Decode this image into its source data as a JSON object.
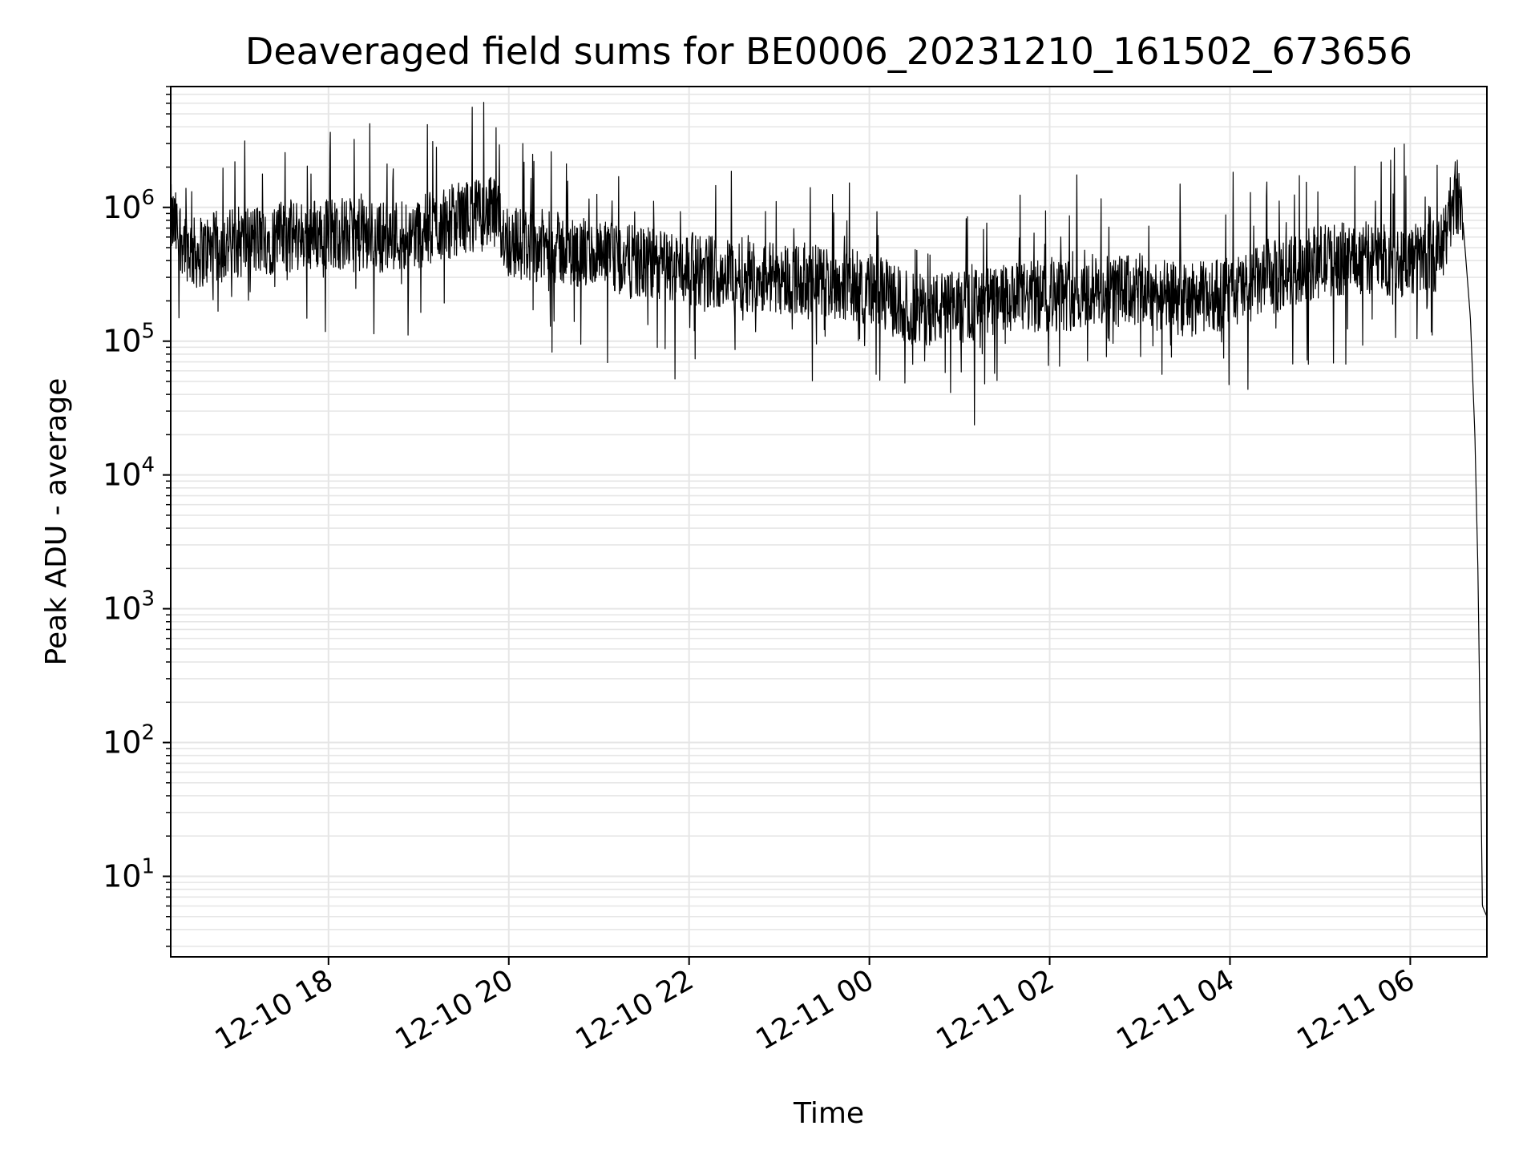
{
  "chart_data": {
    "type": "line",
    "title": "Deaveraged field sums for BE0006_20231210_161502_673656",
    "xlabel": "Time",
    "ylabel": "Peak ADU - average",
    "x_range": [
      "2023-12-10 16:15",
      "2023-12-11 06:51"
    ],
    "y_range": [
      2.5,
      8000000
    ],
    "y_scale": "log",
    "grid": true,
    "line_color": "#000000",
    "grid_color": "#e6e6e6",
    "x_ticks": [
      {
        "value": "2023-12-10 18:00",
        "label": "12-10 18"
      },
      {
        "value": "2023-12-10 20:00",
        "label": "12-10 20"
      },
      {
        "value": "2023-12-10 22:00",
        "label": "12-10 22"
      },
      {
        "value": "2023-12-11 00:00",
        "label": "12-11 00"
      },
      {
        "value": "2023-12-11 02:00",
        "label": "12-11 02"
      },
      {
        "value": "2023-12-11 04:00",
        "label": "12-11 04"
      },
      {
        "value": "2023-12-11 06:00",
        "label": "12-11 06"
      }
    ],
    "y_ticks": [
      {
        "value": 10,
        "base": "10",
        "exp": "1"
      },
      {
        "value": 100,
        "base": "10",
        "exp": "2"
      },
      {
        "value": 1000,
        "base": "10",
        "exp": "3"
      },
      {
        "value": 10000,
        "base": "10",
        "exp": "4"
      },
      {
        "value": 100000,
        "base": "10",
        "exp": "5"
      },
      {
        "value": 1000000,
        "base": "10",
        "exp": "6"
      }
    ],
    "series": [
      {
        "x": [
          "2023-12-10 16:15",
          "2023-12-10 16:30",
          "2023-12-10 16:45",
          "2023-12-10 17:00",
          "2023-12-10 17:30",
          "2023-12-10 18:00",
          "2023-12-10 18:30",
          "2023-12-10 19:00",
          "2023-12-10 19:30",
          "2023-12-10 19:50",
          "2023-12-10 20:00",
          "2023-12-10 20:30",
          "2023-12-10 21:00",
          "2023-12-10 21:30",
          "2023-12-10 22:00",
          "2023-12-10 22:30",
          "2023-12-10 23:00",
          "2023-12-10 23:30",
          "2023-12-11 00:00",
          "2023-12-11 00:30",
          "2023-12-11 01:00",
          "2023-12-11 01:30",
          "2023-12-11 02:00",
          "2023-12-11 02:30",
          "2023-12-11 03:00",
          "2023-12-11 03:30",
          "2023-12-11 04:00",
          "2023-12-11 04:30",
          "2023-12-11 05:00",
          "2023-12-11 05:30",
          "2023-12-11 06:00",
          "2023-12-11 06:20",
          "2023-12-11 06:30",
          "2023-12-11 06:35",
          "2023-12-11 06:40",
          "2023-12-11 06:43",
          "2023-12-11 06:45",
          "2023-12-11 06:47",
          "2023-12-11 06:48",
          "2023-12-11 06:51"
        ],
        "y": [
          800000,
          450000,
          500000,
          550000,
          600000,
          650000,
          600000,
          650000,
          850000,
          900000,
          550000,
          500000,
          420000,
          380000,
          350000,
          320000,
          300000,
          280000,
          250000,
          170000,
          180000,
          200000,
          220000,
          230000,
          240000,
          200000,
          230000,
          300000,
          400000,
          420000,
          400000,
          450000,
          1300000,
          800000,
          150000,
          20000,
          2000,
          50,
          6,
          5
        ]
      }
    ]
  }
}
